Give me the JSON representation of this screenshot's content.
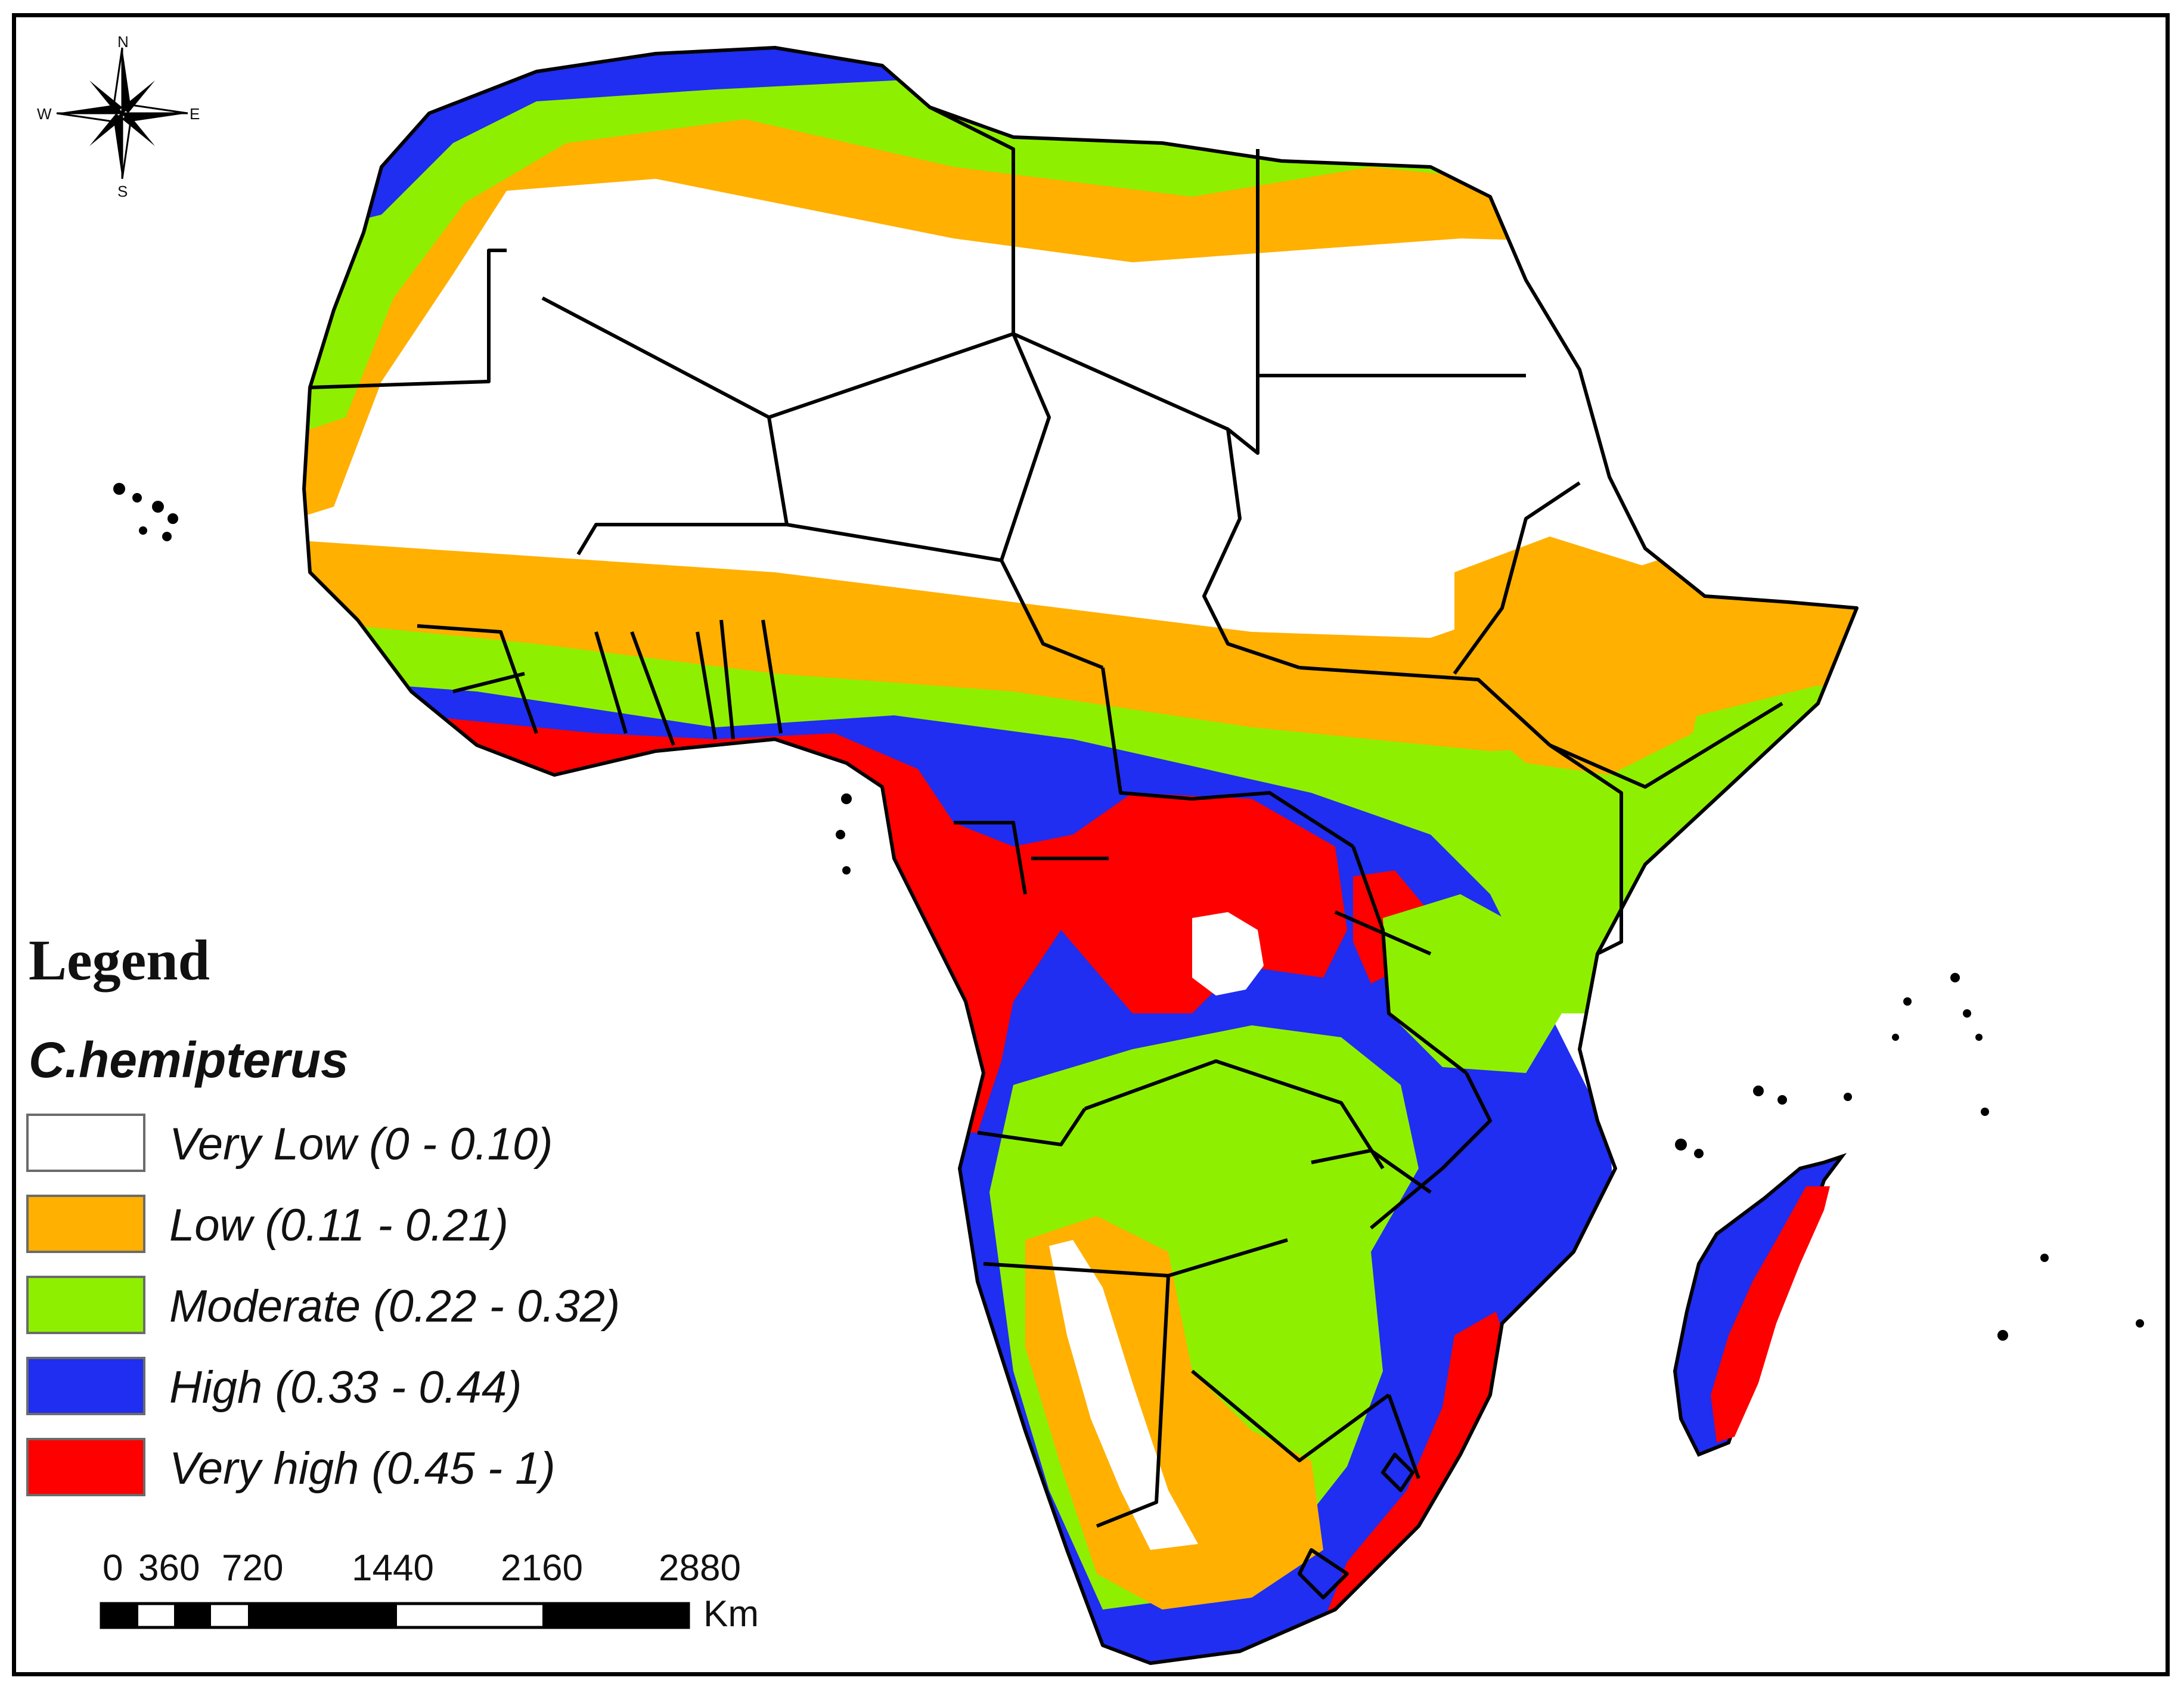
{
  "compass": {
    "north": "N",
    "south": "S",
    "east": "E",
    "west": "W"
  },
  "legend": {
    "title": "Legend",
    "species": "C.hemipterus",
    "classes": [
      {
        "label": "Very Low (0 - 0.10)",
        "color": "#ffffff"
      },
      {
        "label": "Low (0.11 - 0.21)",
        "color": "#ffb000"
      },
      {
        "label": " Moderate (0.22 - 0.32)",
        "color": "#8ef000"
      },
      {
        "label": "High (0.33 - 0.44)",
        "color": "#1f2ef0"
      },
      {
        "label": "Very high (0.45 - 1)",
        "color": "#ff0000"
      }
    ]
  },
  "scale_bar": {
    "ticks": [
      "0",
      "360",
      "720",
      "1440",
      "2160",
      "2880"
    ],
    "unit": "Km"
  }
}
